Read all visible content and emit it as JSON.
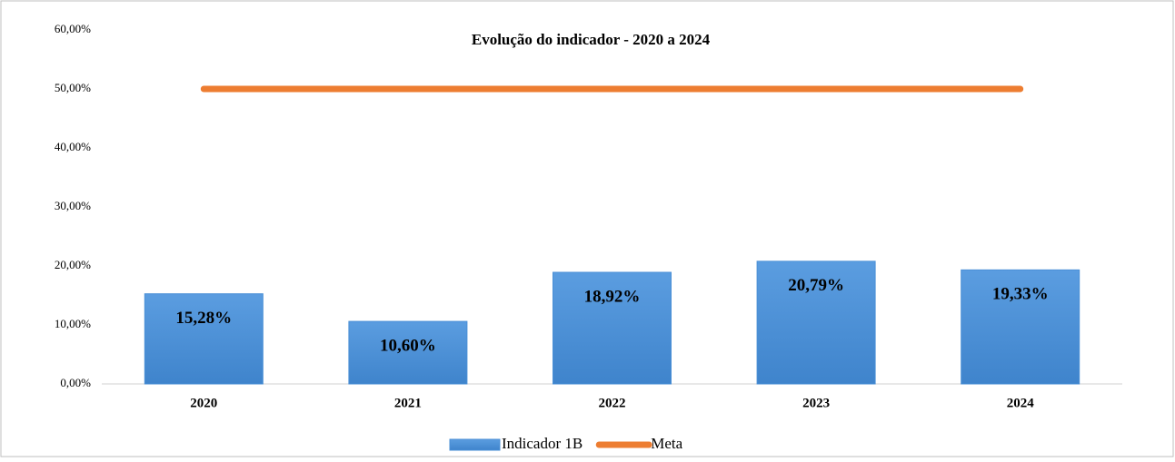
{
  "chart_data": {
    "type": "bar",
    "title": "Evolução do indicador - 2020 a 2024",
    "categories": [
      "2020",
      "2021",
      "2022",
      "2023",
      "2024"
    ],
    "series": [
      {
        "name": "Indicador 1B",
        "type": "bar",
        "color": "#4a8fd6",
        "values": [
          15.28,
          10.6,
          18.92,
          20.79,
          19.33
        ],
        "value_labels": [
          "15,28%",
          "10,60%",
          "18,92%",
          "20,79%",
          "19,33%"
        ]
      },
      {
        "name": "Meta",
        "type": "line",
        "color": "#ed7d31",
        "values": [
          50,
          50,
          50,
          50,
          50
        ]
      }
    ],
    "ylim": [
      0,
      60
    ],
    "yticks": [
      {
        "value": 0,
        "label": "0,00%"
      },
      {
        "value": 10,
        "label": "10,00%"
      },
      {
        "value": 20,
        "label": "20,00%"
      },
      {
        "value": 30,
        "label": "30,00%"
      },
      {
        "value": 40,
        "label": "40,00%"
      },
      {
        "value": 50,
        "label": "50,00%"
      },
      {
        "value": 60,
        "label": "60,00%"
      }
    ],
    "grid": false,
    "legend": "bottom"
  }
}
